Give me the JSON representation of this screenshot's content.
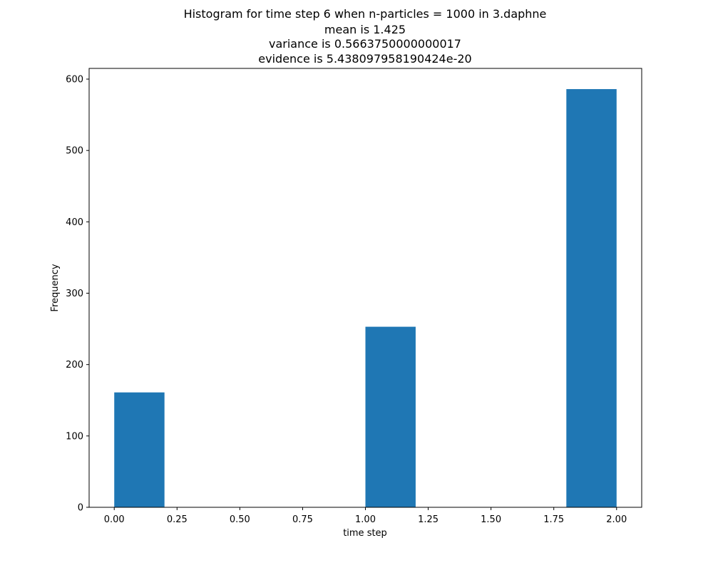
{
  "chart_data": {
    "type": "bar",
    "title_lines": [
      "Histogram for time step 6 when n-particles = 1000 in 3.daphne",
      "mean is 1.425",
      "variance is 0.5663750000000017",
      "evidence is 5.438097958190424e-20"
    ],
    "xlabel": "time step",
    "ylabel": "Frequency",
    "xlim": [
      -0.1,
      2.1
    ],
    "ylim": [
      0,
      615
    ],
    "x_ticks": [
      0.0,
      0.25,
      0.5,
      0.75,
      1.0,
      1.25,
      1.5,
      1.75,
      2.0
    ],
    "x_tick_labels": [
      "0.00",
      "0.25",
      "0.50",
      "0.75",
      "1.00",
      "1.25",
      "1.50",
      "1.75",
      "2.00"
    ],
    "y_ticks": [
      0,
      100,
      200,
      300,
      400,
      500,
      600
    ],
    "y_tick_labels": [
      "0",
      "100",
      "200",
      "300",
      "400",
      "500",
      "600"
    ],
    "bar_color": "#1f77b4",
    "bars": [
      {
        "x0": 0.0,
        "x1": 0.2,
        "value": 161
      },
      {
        "x0": 1.0,
        "x1": 1.2,
        "value": 253
      },
      {
        "x0": 1.8,
        "x1": 2.0,
        "value": 586
      }
    ],
    "grid": false
  }
}
